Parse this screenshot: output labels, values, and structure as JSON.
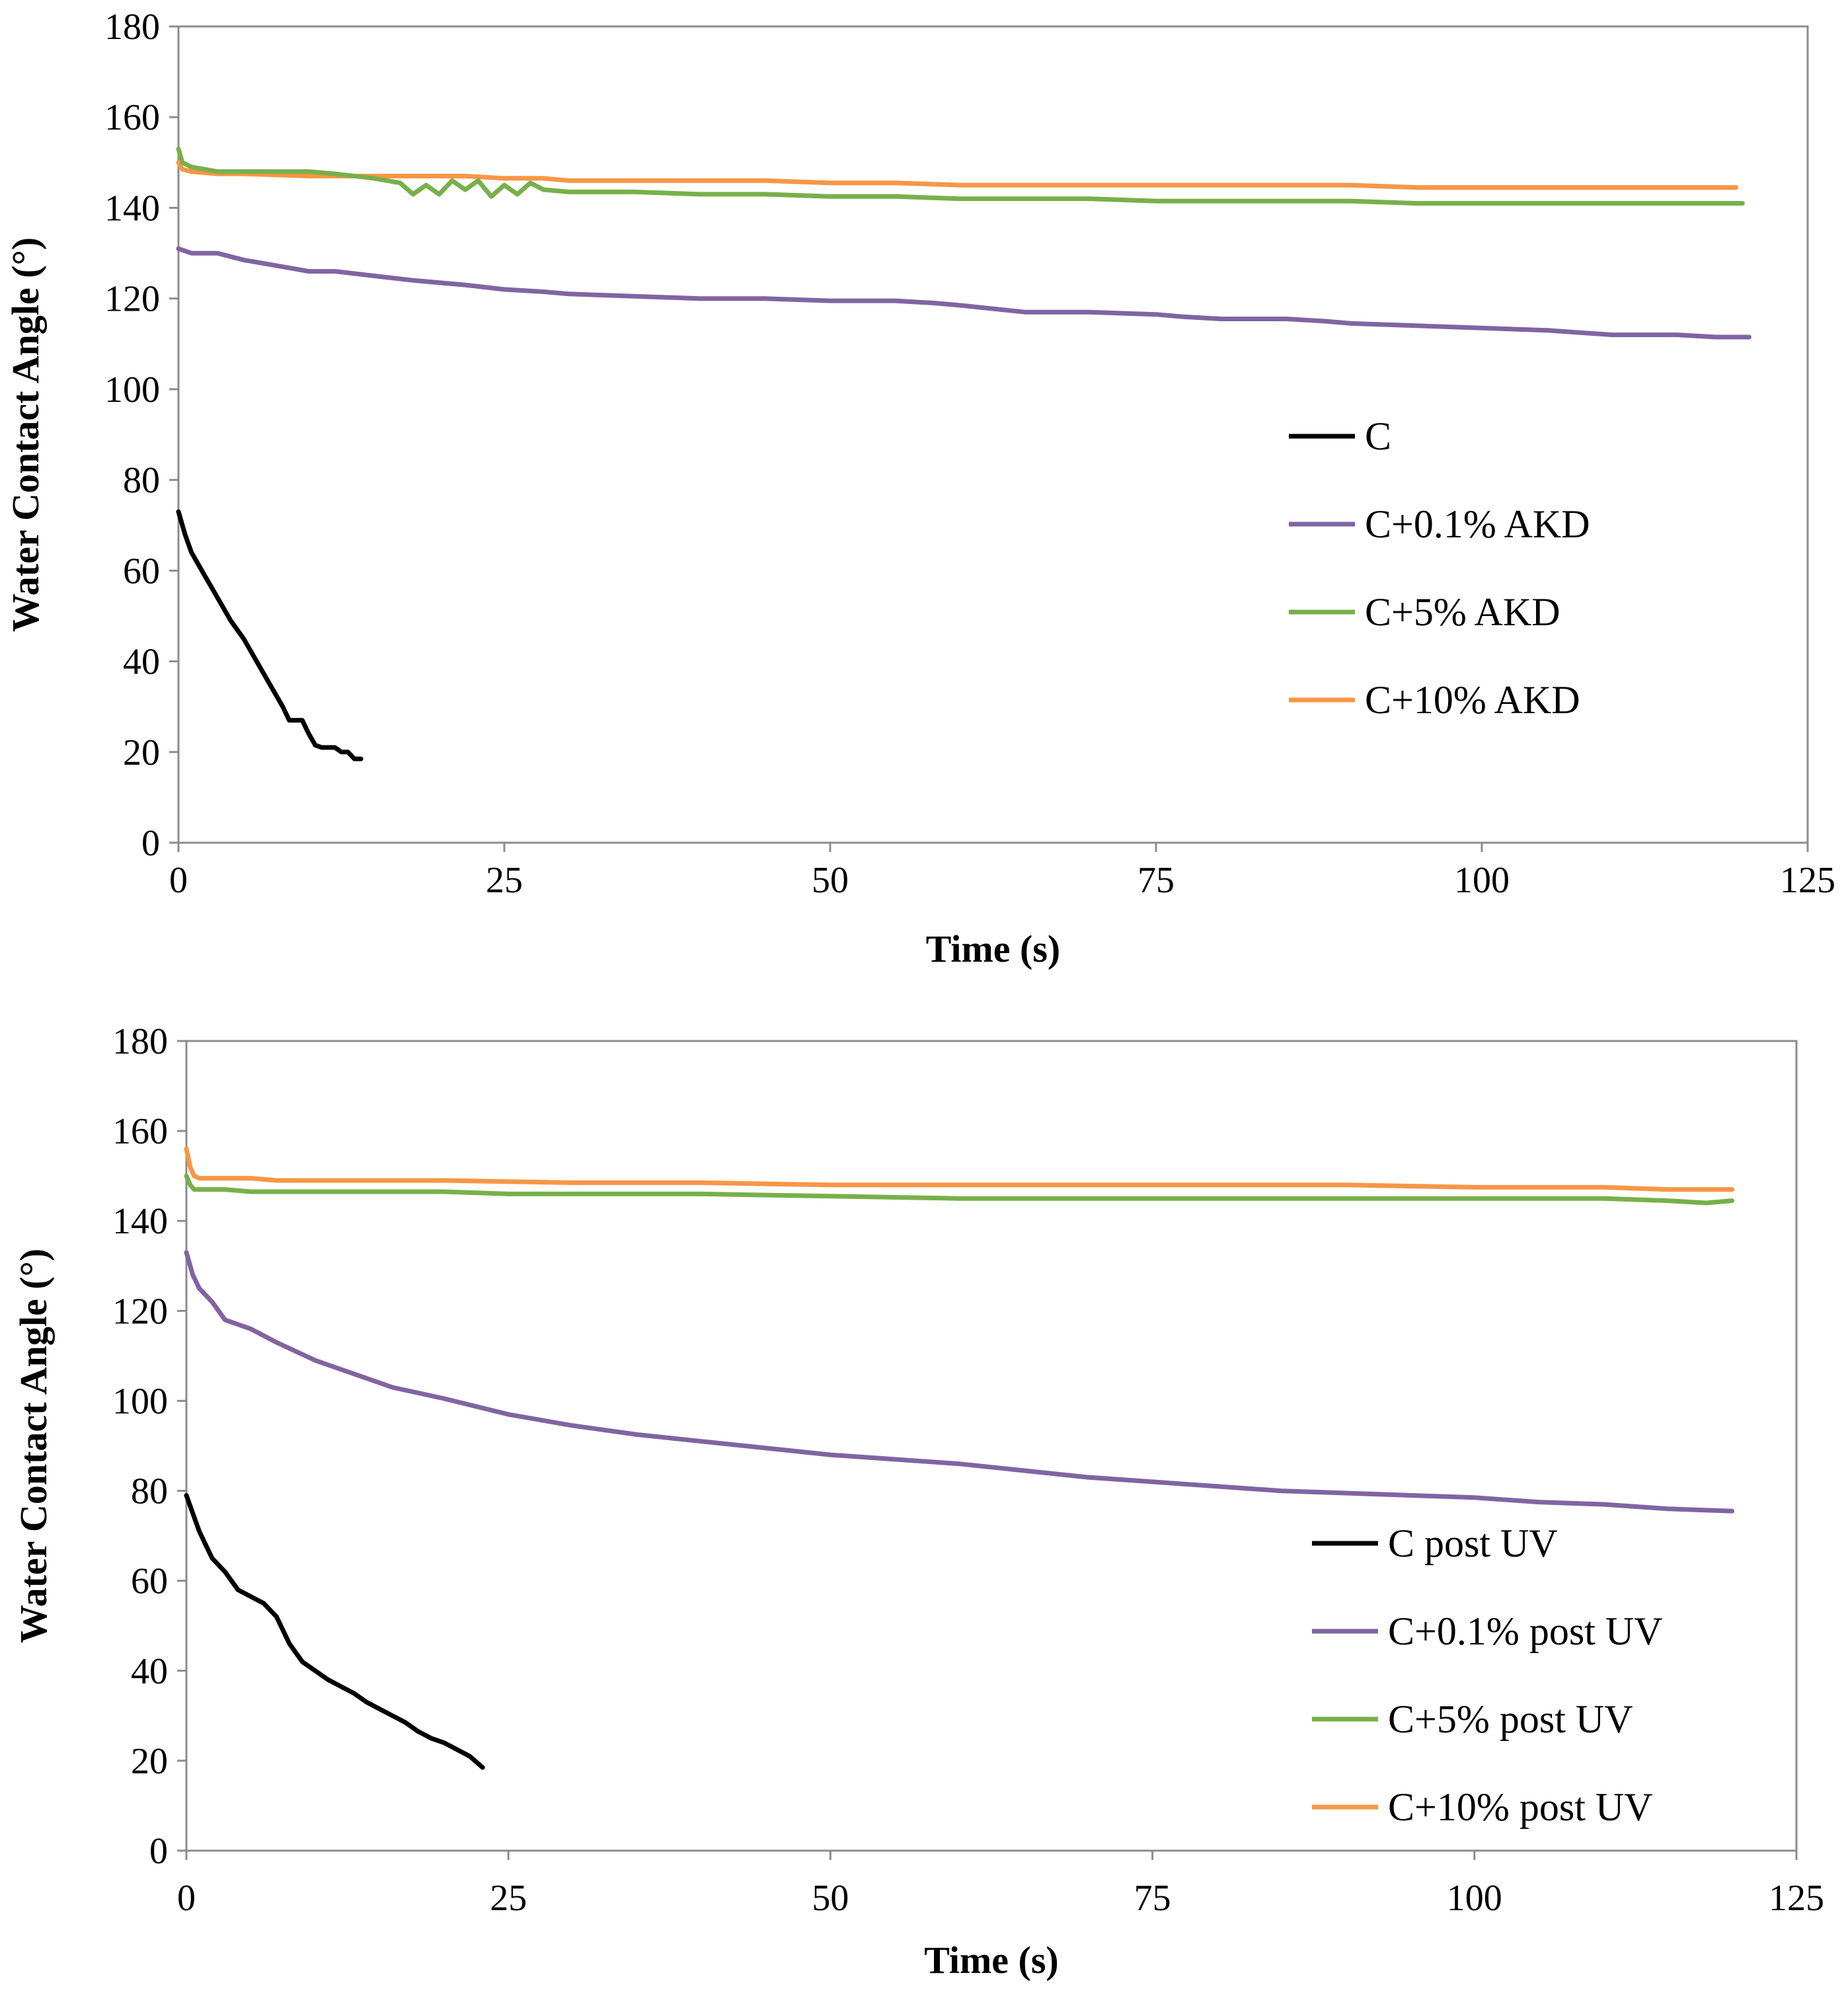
{
  "chart_data": [
    {
      "type": "line",
      "title": "",
      "xlabel": "Time (s)",
      "ylabel": "Water Contact Angle (°)",
      "xlim": [
        0,
        125
      ],
      "ylim": [
        0,
        180
      ],
      "xticks": [
        "0",
        "25",
        "50",
        "75",
        "100",
        "125"
      ],
      "yticks": [
        "0",
        "20",
        "40",
        "60",
        "80",
        "100",
        "120",
        "140",
        "160",
        "180"
      ],
      "grid": false,
      "legend_position": "center-right",
      "series": [
        {
          "name": "C",
          "color": "#000000",
          "x": [
            0,
            0.5,
            1,
            2,
            3,
            4,
            5,
            6,
            7,
            8,
            8.5,
            9,
            9.5,
            10,
            10.5,
            11,
            12,
            12.5,
            13,
            13.5,
            14
          ],
          "y": [
            73,
            68,
            64,
            59,
            54,
            49,
            45,
            40,
            35,
            30,
            27,
            27,
            27,
            24,
            21.5,
            21,
            21,
            20,
            20,
            18.5,
            18.5
          ]
        },
        {
          "name": "C+0.1% AKD",
          "color": "#8064a2",
          "x": [
            0,
            1,
            3,
            5,
            8,
            10,
            12,
            15,
            18,
            22,
            25,
            28,
            30,
            35,
            40,
            45,
            50,
            55,
            58,
            60,
            65,
            70,
            75,
            77,
            80,
            85,
            88,
            90,
            95,
            100,
            105,
            110,
            115,
            118,
            120.5
          ],
          "y": [
            131,
            130,
            130,
            128.5,
            127,
            126,
            126,
            125,
            124,
            123,
            122,
            121.5,
            121,
            120.5,
            120,
            120,
            119.5,
            119.5,
            119,
            118.5,
            117,
            117,
            116.5,
            116,
            115.5,
            115.5,
            115,
            114.5,
            114,
            113.5,
            113,
            112,
            112,
            111.5,
            111.5
          ]
        },
        {
          "name": "C+5% AKD",
          "color": "#77b04a",
          "x": [
            0,
            0.3,
            1,
            3,
            5,
            10,
            12,
            15,
            17,
            18,
            19,
            20,
            21,
            22,
            23,
            24,
            25,
            26,
            27,
            28,
            30,
            35,
            40,
            45,
            50,
            55,
            60,
            65,
            70,
            75,
            80,
            85,
            90,
            95,
            100,
            105,
            110,
            115,
            120
          ],
          "y": [
            153,
            150,
            149,
            148,
            148,
            148,
            147.5,
            146.5,
            145.5,
            143,
            145,
            143,
            146,
            144,
            146,
            142.5,
            145,
            143,
            145.5,
            144,
            143.5,
            143.5,
            143,
            143,
            142.5,
            142.5,
            142,
            142,
            142,
            141.5,
            141.5,
            141.5,
            141.5,
            141,
            141,
            141,
            141,
            141,
            141
          ]
        },
        {
          "name": "C+10% AKD",
          "color": "#f79646",
          "x": [
            0,
            0.3,
            1,
            3,
            5,
            10,
            15,
            20,
            22,
            25,
            28,
            30,
            40,
            45,
            50,
            55,
            60,
            65,
            70,
            75,
            80,
            85,
            90,
            95,
            100,
            105,
            110,
            115,
            119.5
          ],
          "y": [
            150,
            148.5,
            148,
            147.5,
            147.5,
            147,
            147,
            147,
            147,
            146.5,
            146.5,
            146,
            146,
            146,
            145.5,
            145.5,
            145,
            145,
            145,
            145,
            145,
            145,
            145,
            144.5,
            144.5,
            144.5,
            144.5,
            144.5,
            144.5
          ]
        }
      ]
    },
    {
      "type": "line",
      "title": "",
      "xlabel": "Time (s)",
      "ylabel": "Water Contact Angle (°)",
      "xlim": [
        0,
        125
      ],
      "ylim": [
        0,
        180
      ],
      "xticks": [
        "0",
        "25",
        "50",
        "75",
        "100",
        "125"
      ],
      "yticks": [
        "0",
        "20",
        "40",
        "60",
        "80",
        "100",
        "120",
        "140",
        "160",
        "180"
      ],
      "grid": false,
      "legend_position": "bottom-right",
      "series": [
        {
          "name": "C post UV",
          "color": "#000000",
          "x": [
            0,
            0.5,
            1,
            1.5,
            2,
            3,
            4,
            5,
            6,
            7,
            8,
            9,
            10,
            11,
            12,
            13,
            14,
            15,
            16,
            17,
            18,
            19,
            20,
            21,
            22,
            23
          ],
          "y": [
            79,
            75,
            71,
            68,
            65,
            62,
            58,
            56.5,
            55,
            52,
            46,
            42,
            40,
            38,
            36.5,
            35,
            33,
            31.5,
            30,
            28.5,
            26.5,
            25,
            24,
            22.5,
            21,
            18.5
          ]
        },
        {
          "name": "C+0.1% post UV",
          "color": "#8064a2",
          "x": [
            0,
            0.5,
            1,
            2,
            3,
            5,
            7,
            10,
            13,
            16,
            20,
            25,
            30,
            35,
            40,
            45,
            50,
            55,
            60,
            65,
            70,
            75,
            80,
            85,
            90,
            95,
            100,
            105,
            110,
            115,
            120
          ],
          "y": [
            133,
            128,
            125,
            122,
            118,
            116,
            113,
            109,
            106,
            103,
            100.5,
            97,
            94.5,
            92.5,
            91,
            89.5,
            88,
            87,
            86,
            84.5,
            83,
            82,
            81,
            80,
            79.5,
            79,
            78.5,
            77.5,
            77,
            76,
            75.5
          ]
        },
        {
          "name": "C+5% post UV",
          "color": "#77b04a",
          "x": [
            0,
            0.3,
            0.6,
            1,
            3,
            5,
            10,
            20,
            25,
            30,
            40,
            50,
            60,
            70,
            80,
            90,
            100,
            110,
            115,
            118,
            120
          ],
          "y": [
            150,
            148,
            147,
            147,
            147,
            146.5,
            146.5,
            146.5,
            146,
            146,
            146,
            145.5,
            145,
            145,
            145,
            145,
            145,
            145,
            144.5,
            144,
            144.5
          ]
        },
        {
          "name": "C+10% post UV",
          "color": "#f79646",
          "x": [
            0,
            0.3,
            0.6,
            1,
            3,
            5,
            7,
            10,
            20,
            30,
            40,
            50,
            60,
            70,
            80,
            90,
            100,
            110,
            115,
            120
          ],
          "y": [
            156,
            152,
            150,
            149.5,
            149.5,
            149.5,
            149,
            149,
            149,
            148.5,
            148.5,
            148,
            148,
            148,
            148,
            148,
            147.5,
            147.5,
            147,
            147
          ]
        }
      ]
    }
  ]
}
